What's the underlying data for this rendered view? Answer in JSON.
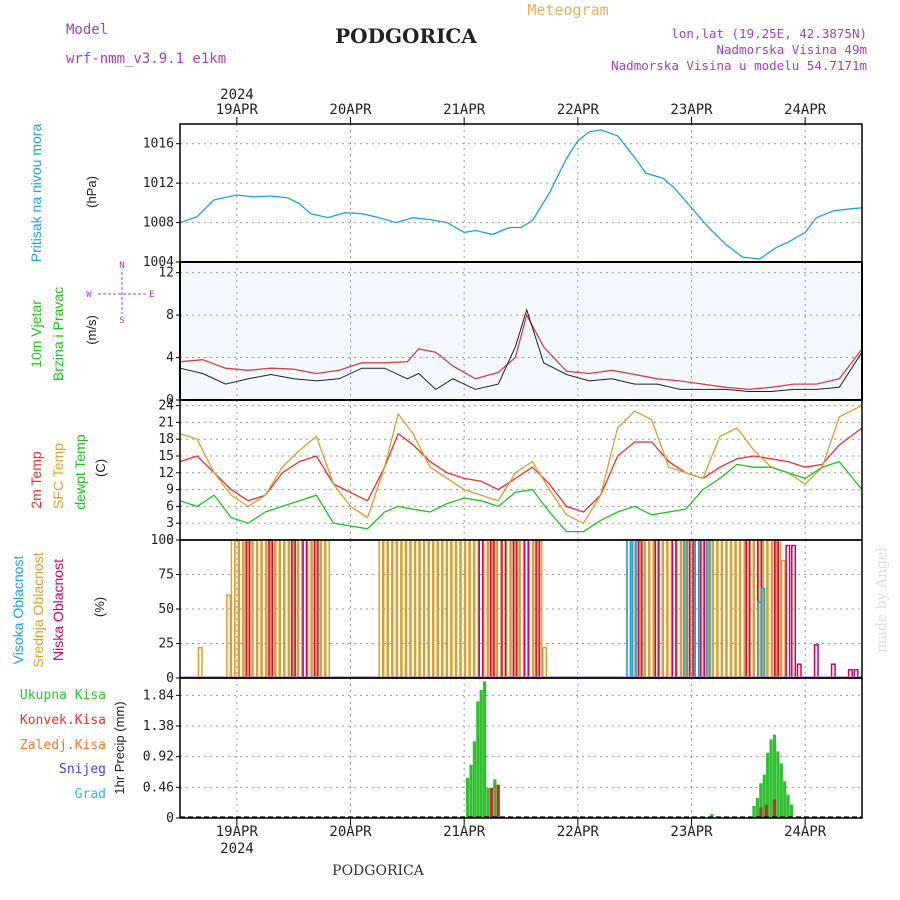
{
  "header": {
    "model_label": "Model",
    "model_name": "wrf-nmm_v3.9.1 e1km",
    "city": "PODGORICA",
    "meteogram": "Meteogram",
    "lonlat": "lon,lat (19.25E, 42.3875N)",
    "elevation": "Nadmorska Visina 49m",
    "model_elevation": "Nadmorska Visina u modelu 54.7171m"
  },
  "footer": {
    "city": "PODGORICA"
  },
  "watermark": "made by Angel",
  "colors": {
    "pressure": "#1fa0e0",
    "temp2m": "#e83030",
    "sfc": "#d8a030",
    "dew": "#20c020",
    "high_cloud": "#1fa0e0",
    "mid_cloud": "#d8a030",
    "low_cloud": "#cc0066",
    "rain": "#30c030",
    "conv": "#c03030",
    "grid": "#999999"
  },
  "chart_data": [
    {
      "id": "pressure",
      "type": "line",
      "ylabels": [
        "Pritisak na nivou mora",
        "(hPa)"
      ],
      "ylim": [
        1004,
        1018
      ],
      "yticks": [
        1004,
        1008,
        1012,
        1016
      ],
      "x_top_year": "2024",
      "x_labels": [
        "19APR",
        "20APR",
        "21APR",
        "22APR",
        "23APR",
        "24APR"
      ],
      "x_day_start": [
        0,
        1,
        2,
        3,
        4,
        5
      ],
      "xlim": [
        -0.5,
        5.5
      ],
      "series": [
        {
          "name": "Pritisak na nivou mora",
          "x": [
            -0.5,
            -0.35,
            -0.2,
            0.0,
            0.15,
            0.3,
            0.45,
            0.55,
            0.65,
            0.8,
            0.95,
            1.1,
            1.25,
            1.4,
            1.55,
            1.7,
            1.85,
            2.0,
            2.1,
            2.25,
            2.4,
            2.5,
            2.6,
            2.75,
            2.9,
            3.0,
            3.1,
            3.2,
            3.35,
            3.5,
            3.6,
            3.75,
            3.85,
            4.0,
            4.15,
            4.3,
            4.45,
            4.6,
            4.75,
            4.85,
            5.0,
            5.1,
            5.25,
            5.4,
            5.5
          ],
          "values": [
            1008.0,
            1008.6,
            1010.3,
            1010.8,
            1010.6,
            1010.7,
            1010.5,
            1009.9,
            1008.9,
            1008.5,
            1009.0,
            1008.9,
            1008.5,
            1008.0,
            1008.5,
            1008.3,
            1008.0,
            1007.0,
            1007.2,
            1006.8,
            1007.5,
            1007.5,
            1008.2,
            1011.0,
            1014.5,
            1016.3,
            1017.2,
            1017.4,
            1016.8,
            1014.6,
            1013.0,
            1012.5,
            1011.5,
            1009.5,
            1007.5,
            1005.8,
            1004.5,
            1004.3,
            1005.5,
            1006.0,
            1007.0,
            1008.5,
            1009.2,
            1009.4,
            1009.5
          ]
        }
      ]
    },
    {
      "id": "wind",
      "type": "line",
      "ylabels": [
        "10m Vjetar",
        "Brzina i Pravac",
        "(m/s)"
      ],
      "compass": [
        "N",
        "S",
        "E",
        "W"
      ],
      "ylim": [
        0,
        13
      ],
      "yticks": [
        0,
        4,
        8,
        12
      ],
      "xlim": [
        -0.5,
        5.5
      ],
      "series": [
        {
          "name": "10m Vjetar",
          "x": [
            -0.5,
            -0.3,
            -0.1,
            0.1,
            0.3,
            0.5,
            0.7,
            0.9,
            1.1,
            1.3,
            1.5,
            1.6,
            1.75,
            1.9,
            2.1,
            2.3,
            2.45,
            2.55,
            2.7,
            2.9,
            3.1,
            3.3,
            3.5,
            3.7,
            3.9,
            4.1,
            4.3,
            4.5,
            4.7,
            4.9,
            5.1,
            5.3,
            5.5
          ],
          "values": [
            3.6,
            3.8,
            3.0,
            2.8,
            3.0,
            2.9,
            2.5,
            2.8,
            3.5,
            3.5,
            3.6,
            4.8,
            4.5,
            3.2,
            2.0,
            2.6,
            4.0,
            8.0,
            5.0,
            2.7,
            2.5,
            2.8,
            2.4,
            2.0,
            1.8,
            1.5,
            1.2,
            1.0,
            1.2,
            1.5,
            1.5,
            2.0,
            4.8
          ]
        },
        {
          "name": "Udari",
          "x": [
            -0.5,
            -0.3,
            -0.1,
            0.1,
            0.3,
            0.5,
            0.7,
            0.9,
            1.1,
            1.3,
            1.5,
            1.6,
            1.75,
            1.9,
            2.1,
            2.3,
            2.45,
            2.55,
            2.7,
            2.9,
            3.1,
            3.3,
            3.5,
            3.7,
            3.9,
            4.1,
            4.3,
            4.5,
            4.7,
            4.9,
            5.1,
            5.3,
            5.5
          ],
          "values": [
            3.0,
            2.5,
            1.5,
            2.0,
            2.4,
            2.0,
            1.8,
            2.0,
            3.0,
            3.0,
            2.0,
            2.5,
            1.0,
            2.0,
            1.0,
            1.5,
            5.0,
            8.5,
            3.5,
            2.4,
            1.8,
            2.0,
            1.5,
            1.5,
            1.0,
            1.0,
            1.0,
            0.8,
            0.8,
            1.0,
            1.0,
            1.2,
            4.5
          ]
        }
      ]
    },
    {
      "id": "temperature",
      "type": "line",
      "ylabels": [
        "2m Temp",
        "SFC Temp",
        "dewpt Temp",
        "(C)"
      ],
      "ylim": [
        0,
        25
      ],
      "yticks": [
        0,
        3,
        6,
        9,
        12,
        15,
        18,
        21,
        24
      ],
      "xlim": [
        -0.5,
        5.5
      ],
      "series": [
        {
          "name": "2m Temp",
          "x": [
            -0.5,
            -0.35,
            -0.2,
            -0.05,
            0.1,
            0.25,
            0.4,
            0.55,
            0.7,
            0.85,
            1.0,
            1.15,
            1.3,
            1.42,
            1.55,
            1.7,
            1.85,
            2.0,
            2.15,
            2.3,
            2.45,
            2.6,
            2.75,
            2.9,
            3.05,
            3.2,
            3.35,
            3.5,
            3.65,
            3.8,
            3.95,
            4.1,
            4.25,
            4.4,
            4.55,
            4.7,
            4.85,
            5.0,
            5.15,
            5.3,
            5.5
          ],
          "values": [
            14.0,
            15.0,
            12.0,
            9.0,
            7.0,
            8.0,
            12.0,
            14.0,
            15.0,
            10.0,
            8.5,
            7.0,
            13.0,
            19.0,
            17.0,
            14.0,
            12.0,
            11.0,
            10.5,
            9.0,
            11.0,
            13.0,
            10.0,
            6.0,
            5.0,
            8.0,
            15.0,
            17.5,
            17.5,
            14.0,
            12.0,
            11.0,
            13.0,
            14.5,
            15.0,
            14.5,
            14.0,
            13.0,
            13.5,
            17.0,
            20.0
          ]
        },
        {
          "name": "SFC Temp",
          "x": [
            -0.5,
            -0.35,
            -0.2,
            -0.05,
            0.1,
            0.25,
            0.4,
            0.55,
            0.7,
            0.85,
            1.0,
            1.15,
            1.3,
            1.42,
            1.55,
            1.7,
            1.85,
            2.0,
            2.15,
            2.3,
            2.45,
            2.6,
            2.75,
            2.9,
            3.05,
            3.2,
            3.35,
            3.5,
            3.65,
            3.8,
            3.95,
            4.1,
            4.25,
            4.4,
            4.55,
            4.7,
            4.85,
            5.0,
            5.15,
            5.3,
            5.5
          ],
          "values": [
            19.0,
            18.0,
            12.0,
            8.0,
            6.0,
            8.0,
            13.0,
            16.0,
            18.5,
            10.0,
            6.0,
            4.0,
            13.0,
            22.5,
            19.0,
            13.0,
            11.0,
            9.0,
            8.0,
            7.0,
            12.0,
            14.0,
            9.0,
            4.5,
            3.0,
            8.0,
            20.0,
            23.0,
            21.5,
            13.0,
            12.0,
            11.0,
            18.5,
            20.0,
            16.0,
            13.0,
            12.0,
            10.0,
            13.0,
            22.0,
            24.0
          ]
        },
        {
          "name": "dewpt Temp",
          "x": [
            -0.5,
            -0.35,
            -0.2,
            -0.05,
            0.1,
            0.25,
            0.4,
            0.55,
            0.7,
            0.85,
            1.0,
            1.15,
            1.3,
            1.42,
            1.55,
            1.7,
            1.85,
            2.0,
            2.15,
            2.3,
            2.45,
            2.6,
            2.75,
            2.9,
            3.05,
            3.2,
            3.35,
            3.5,
            3.65,
            3.8,
            3.95,
            4.1,
            4.25,
            4.4,
            4.55,
            4.7,
            4.85,
            5.0,
            5.15,
            5.3,
            5.5
          ],
          "values": [
            7.0,
            6.0,
            8.0,
            4.0,
            3.0,
            5.0,
            6.0,
            7.0,
            8.0,
            3.0,
            2.5,
            2.0,
            5.0,
            6.0,
            5.5,
            5.0,
            6.5,
            7.5,
            7.0,
            6.0,
            8.5,
            9.0,
            5.0,
            1.5,
            1.5,
            3.5,
            5.0,
            6.0,
            4.5,
            5.0,
            5.5,
            9.0,
            11.0,
            13.5,
            13.0,
            13.0,
            12.0,
            11.0,
            13.0,
            14.0,
            9.0
          ]
        }
      ]
    },
    {
      "id": "clouds",
      "type": "bar",
      "ylabels": [
        "Visoka Oblacnost",
        "Srednja Oblacnost",
        "Niska Oblacnost",
        "(%)"
      ],
      "ylim": [
        0,
        100
      ],
      "yticks": [
        0,
        25,
        50,
        75,
        100
      ],
      "xlim": [
        -0.5,
        5.5
      ],
      "series": [
        {
          "name": "Srednja Oblacnost",
          "x": [
            -0.32,
            -0.07,
            -0.03,
            0.0,
            0.04,
            0.08,
            0.12,
            0.16,
            0.2,
            0.24,
            0.28,
            0.32,
            0.36,
            0.4,
            0.44,
            0.48,
            0.52,
            0.56,
            0.6,
            0.64,
            0.68,
            0.72,
            0.76,
            0.8,
            1.27,
            1.31,
            1.35,
            1.39,
            1.43,
            1.47,
            1.51,
            1.55,
            1.59,
            1.63,
            1.67,
            1.71,
            1.75,
            1.79,
            1.83,
            1.87,
            1.91,
            1.95,
            1.99,
            2.03,
            2.07,
            2.11,
            2.15,
            2.19,
            2.23,
            2.27,
            2.31,
            2.35,
            2.39,
            2.43,
            2.47,
            2.51,
            2.55,
            2.59,
            2.63,
            2.67,
            2.71,
            3.45,
            3.49,
            3.53,
            3.57,
            3.61,
            3.65,
            3.69,
            3.73,
            3.77,
            3.81,
            3.85,
            3.89,
            3.93,
            3.97,
            4.01,
            4.05,
            4.09,
            4.13,
            4.17,
            4.21,
            4.25,
            4.29,
            4.33,
            4.37,
            4.41,
            4.45,
            4.49,
            4.53,
            4.57,
            4.61,
            4.65,
            4.69,
            4.73,
            4.77,
            4.81
          ],
          "values": [
            22,
            60,
            100,
            100,
            100,
            100,
            100,
            100,
            100,
            100,
            100,
            100,
            100,
            100,
            100,
            100,
            100,
            100,
            100,
            100,
            100,
            100,
            100,
            100,
            100,
            100,
            100,
            100,
            100,
            100,
            100,
            100,
            100,
            100,
            100,
            100,
            100,
            100,
            100,
            100,
            100,
            100,
            100,
            100,
            100,
            100,
            100,
            100,
            100,
            100,
            100,
            100,
            100,
            100,
            100,
            100,
            100,
            100,
            100,
            100,
            22,
            100,
            100,
            100,
            100,
            100,
            100,
            100,
            100,
            100,
            100,
            100,
            100,
            100,
            100,
            100,
            100,
            100,
            100,
            100,
            100,
            100,
            100,
            100,
            100,
            100,
            100,
            100,
            100,
            100,
            100,
            100,
            100,
            100,
            100,
            85
          ]
        },
        {
          "name": "Niska Oblacnost",
          "x": [
            0.1,
            0.3,
            0.5,
            0.6,
            0.7,
            2.15,
            2.25,
            2.35,
            2.45,
            2.55,
            2.65,
            3.55,
            3.7,
            3.85,
            4.0,
            4.1,
            4.5,
            4.6,
            4.75,
            4.85,
            4.9,
            4.95,
            5.1,
            5.25,
            5.4,
            5.45
          ],
          "values": [
            100,
            100,
            100,
            100,
            100,
            100,
            100,
            100,
            100,
            100,
            100,
            100,
            100,
            100,
            100,
            100,
            100,
            100,
            100,
            96,
            96,
            10,
            24,
            10,
            6,
            6
          ]
        },
        {
          "name": "Visoka Oblacnost",
          "x": [
            3.45,
            3.5,
            3.95,
            4.05,
            4.15,
            4.6,
            4.63
          ],
          "values": [
            100,
            100,
            100,
            100,
            100,
            55,
            65
          ]
        }
      ]
    },
    {
      "id": "precip",
      "type": "bar",
      "ylabels": [
        "Ukupna Kisa",
        "Konvek.Kisa",
        "Zaledj.Kisa",
        "Snijeg",
        "Grad",
        "1hr Precip (mm)"
      ],
      "ylim": [
        0,
        2.1
      ],
      "yticks": [
        0,
        0.46,
        0.92,
        1.38,
        1.84
      ],
      "ytick_labels": [
        "0",
        "0.46",
        "0.92",
        "1.38",
        "1.84"
      ],
      "x_labels": [
        "19APR",
        "20APR",
        "21APR",
        "22APR",
        "23APR",
        "24APR"
      ],
      "x_bottom_year": "2024",
      "xlim": [
        -0.5,
        5.5
      ],
      "series": [
        {
          "name": "Ukupna Kisa",
          "x": [
            2.03,
            2.06,
            2.09,
            2.12,
            2.15,
            2.18,
            2.21,
            2.27,
            4.18,
            4.55,
            4.58,
            4.61,
            4.64,
            4.67,
            4.7,
            4.73,
            4.76,
            4.79,
            4.82,
            4.85,
            4.88
          ],
          "values": [
            0.6,
            0.8,
            1.15,
            1.75,
            1.92,
            2.05,
            0.45,
            0.58,
            0.06,
            0.18,
            0.3,
            0.52,
            0.65,
            0.98,
            1.18,
            1.25,
            1.0,
            0.82,
            0.55,
            0.35,
            0.2
          ]
        },
        {
          "name": "Konvek.Kisa",
          "x": [
            2.24,
            2.3,
            4.61,
            4.66,
            4.73
          ],
          "values": [
            0.45,
            0.5,
            0.16,
            0.2,
            0.28
          ]
        }
      ]
    }
  ]
}
